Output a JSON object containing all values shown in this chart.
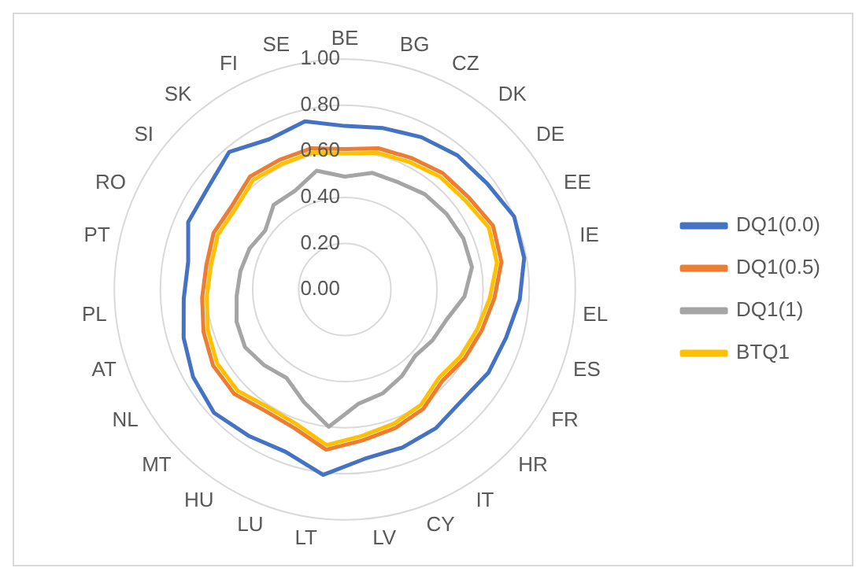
{
  "chart_data": {
    "type": "radar",
    "categories": [
      "BE",
      "BG",
      "CZ",
      "DK",
      "DE",
      "EE",
      "IE",
      "EL",
      "ES",
      "FR",
      "HR",
      "IT",
      "CY",
      "LV",
      "LT",
      "LU",
      "HU",
      "MT",
      "NL",
      "AT",
      "PL",
      "PT",
      "RO",
      "SI",
      "SK",
      "FI",
      "SE"
    ],
    "series": [
      {
        "name": "DQ1(0.0)",
        "color": "#4472c4",
        "values": [
          0.71,
          0.72,
          0.74,
          0.76,
          0.77,
          0.8,
          0.79,
          0.76,
          0.73,
          0.72,
          0.7,
          0.72,
          0.73,
          0.74,
          0.81,
          0.75,
          0.76,
          0.78,
          0.76,
          0.73,
          0.7,
          0.69,
          0.74,
          0.74,
          0.78,
          0.73,
          0.75
        ]
      },
      {
        "name": "DQ1(0.5)",
        "color": "#ed7d31",
        "values": [
          0.61,
          0.63,
          0.64,
          0.66,
          0.67,
          0.7,
          0.69,
          0.65,
          0.62,
          0.6,
          0.58,
          0.62,
          0.64,
          0.66,
          0.7,
          0.64,
          0.63,
          0.66,
          0.66,
          0.64,
          0.62,
          0.61,
          0.62,
          0.61,
          0.64,
          0.63,
          0.63
        ]
      },
      {
        "name": "DQ1(1)",
        "color": "#a5a5a5",
        "values": [
          0.49,
          0.52,
          0.52,
          0.54,
          0.55,
          0.56,
          0.56,
          0.52,
          0.46,
          0.44,
          0.42,
          0.45,
          0.48,
          0.5,
          0.6,
          0.52,
          0.46,
          0.48,
          0.5,
          0.49,
          0.47,
          0.46,
          0.45,
          0.43,
          0.48,
          0.48,
          0.53
        ]
      },
      {
        "name": "BTQ1",
        "color": "#ffc000",
        "values": [
          0.59,
          0.61,
          0.62,
          0.64,
          0.65,
          0.68,
          0.67,
          0.63,
          0.6,
          0.58,
          0.56,
          0.6,
          0.62,
          0.64,
          0.68,
          0.62,
          0.61,
          0.64,
          0.64,
          0.62,
          0.6,
          0.59,
          0.6,
          0.59,
          0.62,
          0.61,
          0.61
        ]
      }
    ],
    "ylim": [
      0,
      1
    ],
    "yticks": [
      {
        "value": 0,
        "label": "0.00"
      },
      {
        "value": 0.2,
        "label": "0.20"
      },
      {
        "value": 0.4,
        "label": "0.40"
      },
      {
        "value": 0.6,
        "label": "0.60"
      },
      {
        "value": 0.8,
        "label": "0.80"
      },
      {
        "value": 1,
        "label": "1.00"
      }
    ],
    "grid": true,
    "legend": "right",
    "marker": "none",
    "line_style": "solid"
  }
}
